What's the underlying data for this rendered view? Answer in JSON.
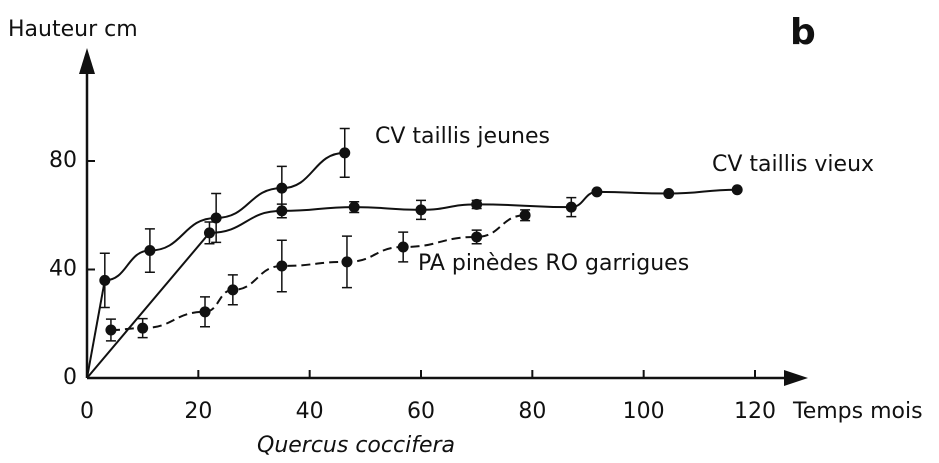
{
  "chart_data": {
    "type": "line",
    "panel_label": "b",
    "y_label": "Hauteur cm",
    "x_label": "Temps mois",
    "subtitle": "Quercus coccifera",
    "xlim": [
      0,
      120
    ],
    "ylim": [
      0,
      80
    ],
    "xticks": [
      0,
      20,
      40,
      60,
      80,
      100,
      120
    ],
    "yticks": [
      0,
      40,
      80
    ],
    "series": [
      {
        "name": "CV taillis jeunes",
        "color": "#111111",
        "dash": false,
        "x": [
          3.2,
          11.3,
          23.2,
          35,
          46.3
        ],
        "values": [
          36,
          47,
          59,
          70,
          83
        ],
        "errors": [
          10,
          8,
          9,
          8,
          9
        ]
      },
      {
        "name": "CV taillis vieux",
        "color": "#111111",
        "dash": false,
        "x": [
          22,
          35,
          48,
          60,
          70,
          87,
          91.6,
          104.5,
          116.8
        ],
        "values": [
          53.5,
          61.6,
          63,
          62,
          64,
          63,
          68.6,
          68,
          69.4
        ],
        "errors": [
          4,
          2.5,
          2,
          3.5,
          1.5,
          3.5,
          null,
          null,
          null
        ]
      },
      {
        "name": "PA pinèdes RO garrigues",
        "color": "#111111",
        "dash": true,
        "x": [
          4.3,
          10,
          21.2,
          26.2,
          35,
          46.7,
          56.8,
          70,
          78.7
        ],
        "values": [
          17.7,
          18.4,
          24.4,
          32.5,
          41.3,
          42.8,
          48.3,
          52,
          60
        ],
        "errors": [
          4,
          3.5,
          5.5,
          5.5,
          9.5,
          9.5,
          5.5,
          2.5,
          2
        ]
      }
    ]
  }
}
